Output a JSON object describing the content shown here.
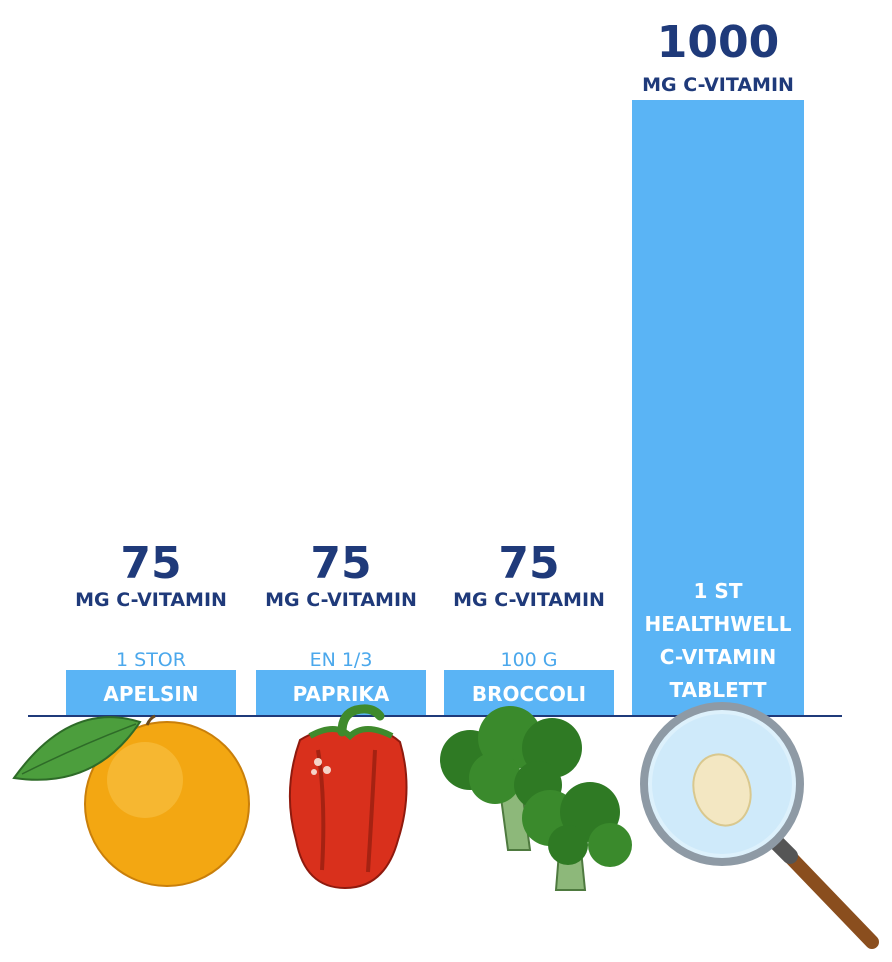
{
  "colors": {
    "bar": "#5AB4F5",
    "value_text": "#1F3A7A",
    "quantity_text": "#4BA8EC",
    "bar_label_text": "#FFFFFF",
    "baseline": "#1F3A7A"
  },
  "chart_data": {
    "type": "bar",
    "unit_label": "MG C-VITAMIN",
    "categories": [
      {
        "quantity": "1 STOR",
        "label": "APELSIN",
        "value": 75,
        "value_text": "75",
        "icon": "orange-icon"
      },
      {
        "quantity": "EN 1/3",
        "label": "PAPRIKA",
        "value": 75,
        "value_text": "75",
        "icon": "bell-pepper-icon"
      },
      {
        "quantity": "100 G",
        "label": "BROCCOLI",
        "value": 75,
        "value_text": "75",
        "icon": "broccoli-icon"
      },
      {
        "quantity": "",
        "label": "1 ST HEALTHWELL C-VITAMIN TABLETT",
        "label_lines": [
          "1 ST",
          "HEALTHWELL",
          "C-VITAMIN",
          "TABLETT"
        ],
        "value": 1000,
        "value_text": "1000",
        "icon": "magnifier-tablet-icon"
      }
    ],
    "values": [
      75,
      75,
      75,
      1000
    ],
    "ylim": [
      0,
      1000
    ],
    "grid": false,
    "legend": "none"
  }
}
